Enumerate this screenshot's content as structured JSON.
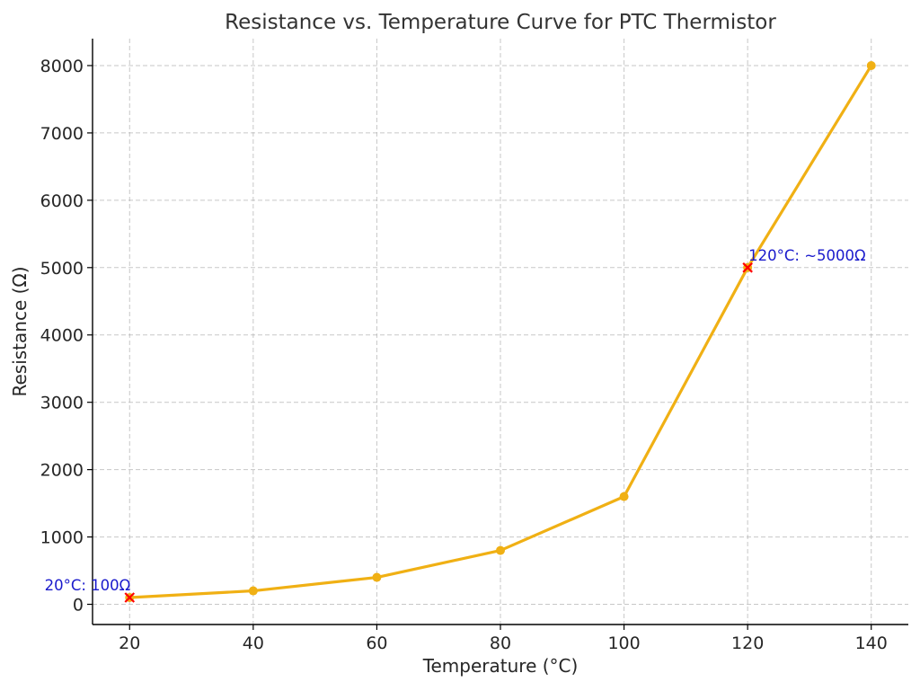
{
  "chart_data": {
    "type": "line",
    "title": "Resistance vs. Temperature Curve for PTC Thermistor",
    "xlabel": "Temperature (°C)",
    "ylabel": "Resistance (Ω)",
    "xlim": [
      14,
      146
    ],
    "ylim": [
      -300,
      8400
    ],
    "x_ticks": [
      20,
      40,
      60,
      80,
      100,
      120,
      140
    ],
    "y_ticks": [
      0,
      1000,
      2000,
      3000,
      4000,
      5000,
      6000,
      7000,
      8000
    ],
    "grid": true,
    "series": [
      {
        "color": "#f0b014",
        "marker": "circle",
        "points": [
          {
            "x": 20,
            "y": 100
          },
          {
            "x": 40,
            "y": 200
          },
          {
            "x": 60,
            "y": 400
          },
          {
            "x": 80,
            "y": 800
          },
          {
            "x": 100,
            "y": 1600
          },
          {
            "x": 120,
            "y": 5000
          },
          {
            "x": 140,
            "y": 8000
          }
        ]
      }
    ],
    "annotations": [
      {
        "x": 20,
        "y": 100,
        "text": "20°C: 100Ω",
        "text_color": "#1a1acc",
        "marker_color": "#ff0000",
        "marker": "x",
        "align": "right"
      },
      {
        "x": 120,
        "y": 5000,
        "text": "120°C: ~5000Ω",
        "text_color": "#1a1acc",
        "marker_color": "#ff0000",
        "marker": "x",
        "align": "left"
      }
    ]
  }
}
